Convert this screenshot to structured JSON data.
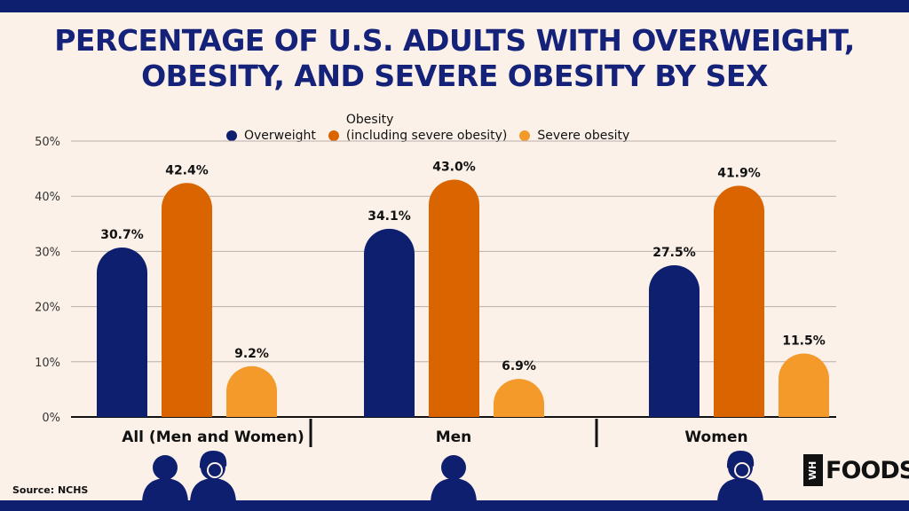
{
  "title": "PERCENTAGE OF U.S. ADULTS WITH OVERWEIGHT, OBESITY, AND SEVERE OBESITY BY SEX",
  "source": "Source: NCHS",
  "logo": {
    "box_text": "WH",
    "text": "FOODS"
  },
  "icons": {
    "group_all": [
      "person-icon",
      "woman-icon"
    ],
    "group_men": [
      "person-icon"
    ],
    "group_women": [
      "woman-icon"
    ]
  },
  "chart_data": {
    "type": "bar",
    "categories": [
      "All (Men and Women)",
      "Men",
      "Women"
    ],
    "series": [
      {
        "name": "Overweight",
        "values": [
          30.7,
          34.1,
          27.5
        ],
        "color": "#0d1f6e",
        "labels": [
          "30.7%",
          "34.1%",
          "27.5%"
        ]
      },
      {
        "name": "Obesity\n(including severe obesity)",
        "values": [
          42.4,
          43.0,
          41.9
        ],
        "color": "#d96400",
        "labels": [
          "42.4%",
          "43.0%",
          "41.9%"
        ]
      },
      {
        "name": "Severe obesity",
        "values": [
          9.2,
          6.9,
          11.5
        ],
        "color": "#f39a2a",
        "labels": [
          "9.2%",
          "6.9%",
          "11.5%"
        ]
      }
    ],
    "yticks": [
      "0%",
      "10%",
      "20%",
      "30%",
      "40%",
      "50%"
    ],
    "ylim": [
      0,
      50
    ],
    "grid": true,
    "legend_position": "top"
  }
}
